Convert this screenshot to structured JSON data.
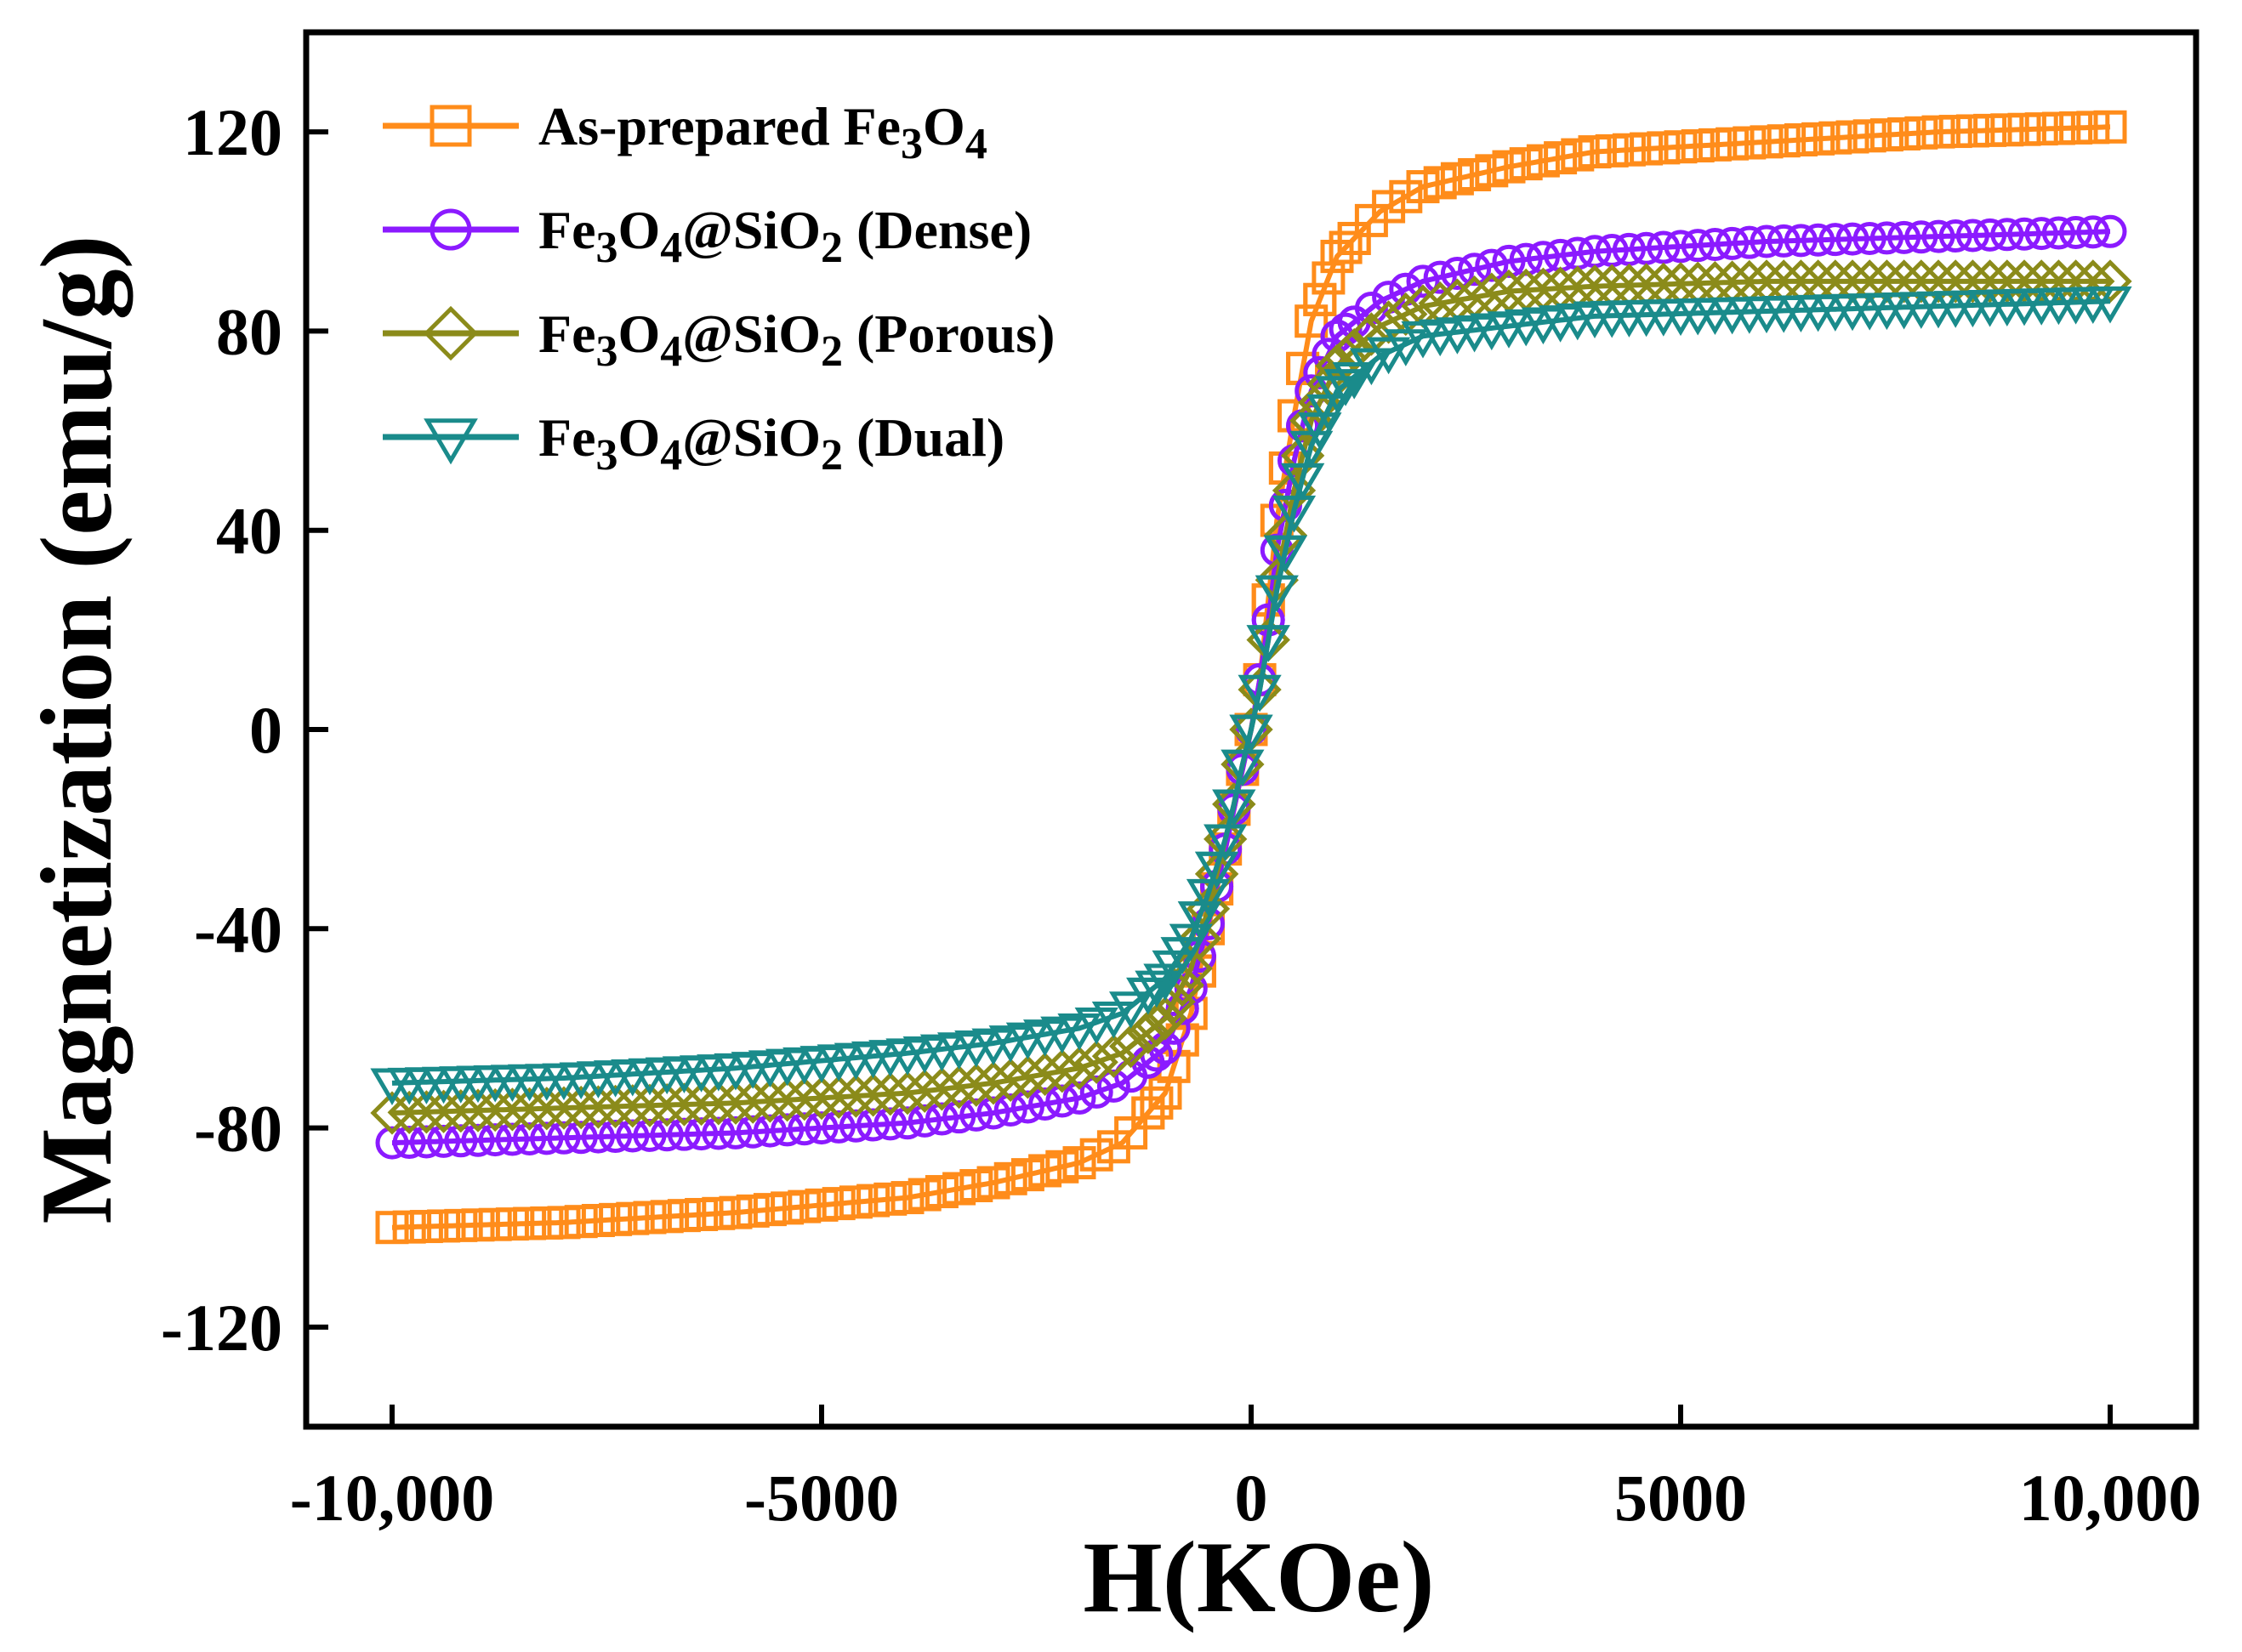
{
  "chart_data": {
    "type": "scatter",
    "title": "",
    "xlabel": "H(KOe)",
    "ylabel": "Magnetization (emu/g)",
    "xlim": [
      -11000,
      11000
    ],
    "ylim": [
      -140,
      140
    ],
    "xticks": [
      -10000,
      -5000,
      0,
      5000,
      10000
    ],
    "xtick_labels": [
      "-10,000",
      "-5000",
      "0",
      "5000",
      "10,000"
    ],
    "yticks": [
      -120,
      -80,
      -40,
      0,
      40,
      80,
      120
    ],
    "ytick_labels": [
      "-120",
      "-80",
      "-40",
      "0",
      "40",
      "80",
      "120"
    ],
    "legend_position": "top-left",
    "series": [
      {
        "name": "As-prepared Fe3O4",
        "legend": {
          "main": "As-prepared Fe",
          "subs": [
            [
              "3",
              "sub"
            ],
            [
              "O",
              "main"
            ],
            [
              "4",
              "sub"
            ]
          ]
        },
        "color": "#ff8c1a",
        "marker": "square",
        "x": [
          -10000,
          -8000,
          -6000,
          -4000,
          -3000,
          -2000,
          -1500,
          -1000,
          -700,
          -500,
          -300,
          -200,
          -100,
          0,
          100,
          200,
          300,
          500,
          700,
          1000,
          1500,
          2000,
          3000,
          4000,
          6000,
          8000,
          10000
        ],
        "y": [
          -100,
          -99,
          -97,
          -94,
          -91,
          -87,
          -83,
          -73,
          -57,
          -40,
          -24,
          -16,
          -8,
          0,
          10,
          26,
          42,
          63,
          82,
          95,
          104,
          109,
          113,
          116,
          118,
          120,
          121
        ]
      },
      {
        "name": "Fe3O4@SiO2 (Dense)",
        "legend": {
          "main": "Fe",
          "subs": [
            [
              "3",
              "sub"
            ],
            [
              "O",
              "main"
            ],
            [
              "4",
              "sub"
            ],
            [
              "@SiO",
              "main"
            ],
            [
              "2",
              "sub"
            ],
            [
              " (Dense)",
              "main"
            ]
          ]
        },
        "color": "#8b1aff",
        "marker": "circle",
        "x": [
          -10000,
          -8000,
          -6000,
          -4000,
          -3000,
          -2000,
          -1500,
          -1000,
          -700,
          -500,
          -300,
          -200,
          -100,
          0,
          100,
          200,
          300,
          500,
          700,
          1000,
          1500,
          2000,
          3000,
          4000,
          6000,
          8000,
          10000
        ],
        "y": [
          -83,
          -82,
          -81,
          -79,
          -77,
          -74,
          -71,
          -64,
          -52,
          -39,
          -24,
          -16,
          -8,
          0,
          10,
          22,
          36,
          54,
          68,
          79,
          86,
          90,
          94,
          96,
          98,
          99,
          100
        ]
      },
      {
        "name": "Fe3O4@SiO2 (Porous)",
        "legend": {
          "main": "Fe",
          "subs": [
            [
              "3",
              "sub"
            ],
            [
              "O",
              "main"
            ],
            [
              "4",
              "sub"
            ],
            [
              "@SiO",
              "main"
            ],
            [
              "2",
              "sub"
            ],
            [
              " (Porous)",
              "main"
            ]
          ]
        },
        "color": "#8b8b1a",
        "marker": "diamond",
        "x": [
          -10000,
          -8000,
          -6000,
          -4000,
          -3000,
          -2000,
          -1500,
          -1000,
          -700,
          -500,
          -300,
          -200,
          -100,
          0,
          100,
          200,
          300,
          500,
          700,
          1000,
          1500,
          2000,
          3000,
          4000,
          6000,
          8000,
          10000
        ],
        "y": [
          -77,
          -76,
          -75,
          -73,
          -71,
          -68,
          -65,
          -58,
          -48,
          -36,
          -22,
          -15,
          -7,
          0,
          8,
          18,
          30,
          48,
          62,
          73,
          81,
          85,
          88,
          89,
          90,
          90,
          90
        ]
      },
      {
        "name": "Fe3O4@SiO2 (Dual)",
        "legend": {
          "main": "Fe",
          "subs": [
            [
              "3",
              "sub"
            ],
            [
              "O",
              "main"
            ],
            [
              "4",
              "sub"
            ],
            [
              "@SiO",
              "main"
            ],
            [
              "2",
              "sub"
            ],
            [
              " (Dual)",
              "main"
            ]
          ]
        },
        "color": "#1a8b8b",
        "marker": "triangle-down",
        "x": [
          -10000,
          -8000,
          -6000,
          -4000,
          -3000,
          -2000,
          -1500,
          -1000,
          -700,
          -500,
          -300,
          -200,
          -100,
          0,
          100,
          200,
          300,
          500,
          700,
          1000,
          1500,
          2000,
          3000,
          4000,
          6000,
          8000,
          10000
        ],
        "y": [
          -71,
          -70,
          -68,
          -65,
          -63,
          -60,
          -57,
          -50,
          -42,
          -33,
          -22,
          -15,
          -7,
          0,
          8,
          18,
          28,
          44,
          57,
          68,
          75,
          79,
          81,
          83,
          84,
          85,
          86
        ]
      }
    ]
  }
}
